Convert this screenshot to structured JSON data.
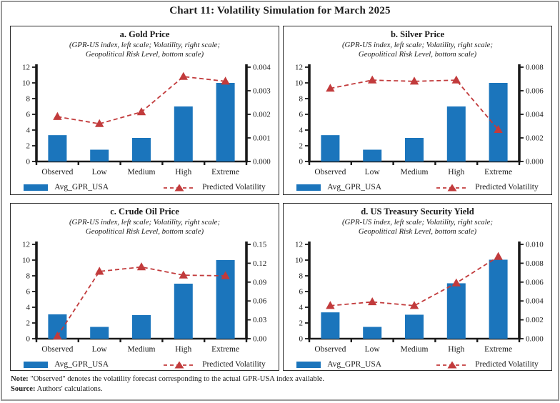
{
  "figure_title": "Chart 11: Volatility Simulation for March 2025",
  "colors": {
    "bar": "#1B75BC",
    "line": "#C23B3C",
    "axis": "#1A1A1A",
    "panel_border": "#2A2A2A",
    "outer_border": "#9A9A9A"
  },
  "legend": {
    "bar_label": "Avg_GPR_USA",
    "line_label": "Predicted Volatility"
  },
  "notes": {
    "note_label": "Note:",
    "note_text": " \"Observed\" denotes the volatility forecast corresponding to the actual GPR-USA index available.",
    "source_label": "Source:",
    "source_text": " Authors' calculations."
  },
  "chart_data": [
    {
      "type": "bar",
      "panel": "a",
      "title": "a. Gold Price",
      "subtitle_line1": "(GPR-US index, left scale; Volatility, right scale;",
      "subtitle_line2": "Geopolitical Risk Level, bottom scale)",
      "categories": [
        "Observed",
        "Low",
        "Medium",
        "High",
        "Extreme"
      ],
      "series": [
        {
          "name": "Avg_GPR_USA",
          "type": "bar",
          "axis": "left",
          "values": [
            3.35,
            1.5,
            3.0,
            7.0,
            10.0
          ]
        },
        {
          "name": "Predicted Volatility",
          "type": "line",
          "axis": "right",
          "values": [
            0.0019,
            0.0016,
            0.0021,
            0.0036,
            0.0034
          ]
        }
      ],
      "left_ylim": [
        0,
        12
      ],
      "left_ticks": [
        "0",
        "2",
        "4",
        "6",
        "8",
        "10",
        "12"
      ],
      "right_ylim": [
        0,
        0.004
      ],
      "right_ticks": [
        "0.000",
        "0.001",
        "0.002",
        "0.003",
        "0.004"
      ]
    },
    {
      "type": "bar",
      "panel": "b",
      "title": "b. Silver Price",
      "subtitle_line1": "(GPR-US index, left scale; Volatility, right scale;",
      "subtitle_line2": "Geopolitical Risk Level, bottom scale)",
      "categories": [
        "Observed",
        "Low",
        "Medium",
        "High",
        "Extreme"
      ],
      "series": [
        {
          "name": "Avg_GPR_USA",
          "type": "bar",
          "axis": "left",
          "values": [
            3.35,
            1.5,
            3.0,
            7.0,
            10.0
          ]
        },
        {
          "name": "Predicted Volatility",
          "type": "line",
          "axis": "right",
          "values": [
            0.0062,
            0.0069,
            0.0068,
            0.0069,
            0.0027
          ]
        }
      ],
      "left_ylim": [
        0,
        12
      ],
      "left_ticks": [
        "0",
        "2",
        "4",
        "6",
        "8",
        "10",
        "12"
      ],
      "right_ylim": [
        0,
        0.008
      ],
      "right_ticks": [
        "0.000",
        "0.002",
        "0.004",
        "0.006",
        "0.008"
      ]
    },
    {
      "type": "bar",
      "panel": "c",
      "title": "c. Crude Oil Price",
      "subtitle_line1": "(GPR-US index, left scale; Volatility, right scale;",
      "subtitle_line2": "Geopolitical Risk Level, bottom scale)",
      "categories": [
        "Observed",
        "Low",
        "Medium",
        "High",
        "Extreme"
      ],
      "series": [
        {
          "name": "Avg_GPR_USA",
          "type": "bar",
          "axis": "left",
          "values": [
            3.1,
            1.5,
            3.0,
            7.0,
            10.0
          ]
        },
        {
          "name": "Predicted Volatility",
          "type": "line",
          "axis": "right",
          "values": [
            0.004,
            0.107,
            0.114,
            0.101,
            0.1
          ]
        }
      ],
      "left_ylim": [
        0,
        12
      ],
      "left_ticks": [
        "0",
        "2",
        "4",
        "6",
        "8",
        "10",
        "12"
      ],
      "right_ylim": [
        0,
        0.15
      ],
      "right_ticks": [
        "0.00",
        "0.03",
        "0.06",
        "0.09",
        "0.12",
        "0.15"
      ]
    },
    {
      "type": "bar",
      "panel": "d",
      "title": "d. US Treasury Security Yield",
      "subtitle_line1": "(GPR-US index, left scale; Volatility, right scale;",
      "subtitle_line2": "Geopolitical Risk Level, bottom scale)",
      "categories": [
        "Observed",
        "Low",
        "Medium",
        "High",
        "Extreme"
      ],
      "series": [
        {
          "name": "Avg_GPR_USA",
          "type": "bar",
          "axis": "left",
          "values": [
            3.35,
            1.5,
            3.05,
            7.05,
            10.05
          ]
        },
        {
          "name": "Predicted Volatility",
          "type": "line",
          "axis": "right",
          "values": [
            0.0035,
            0.0039,
            0.0035,
            0.0059,
            0.0087
          ]
        }
      ],
      "left_ylim": [
        0,
        12
      ],
      "left_ticks": [
        "0",
        "2",
        "4",
        "6",
        "8",
        "10",
        "12"
      ],
      "right_ylim": [
        0,
        0.01
      ],
      "right_ticks": [
        "0.000",
        "0.002",
        "0.004",
        "0.006",
        "0.008",
        "0.010"
      ]
    }
  ]
}
